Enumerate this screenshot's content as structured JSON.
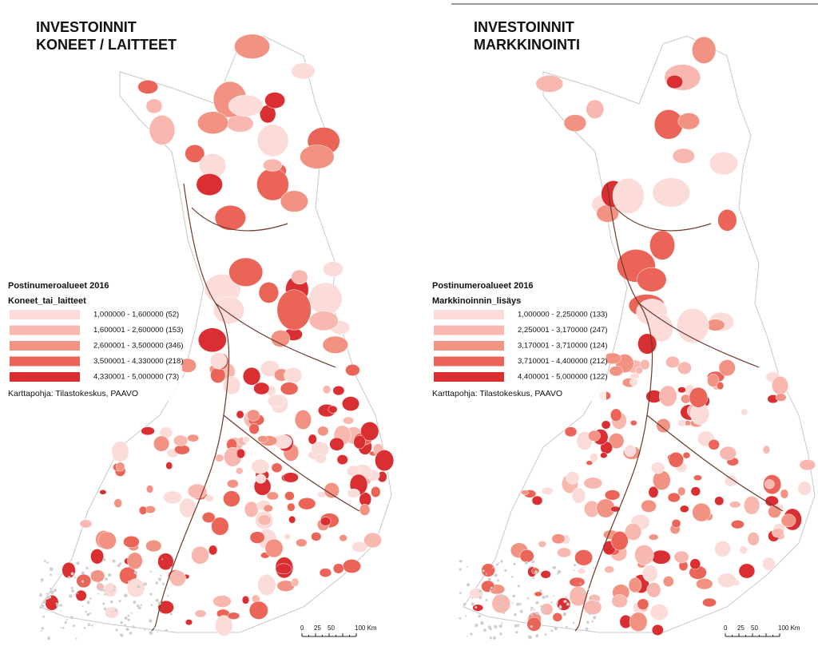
{
  "panels": [
    {
      "title_lines": [
        "INVESTOINNIT",
        "KONEET / LAITTEET"
      ],
      "legend": {
        "title": "Postinumeroalueet 2016",
        "field": "Koneet_tai_laitteet",
        "classes": [
          {
            "label": "1,000000 - 1,600000 (52)",
            "color": "#fbdcd9"
          },
          {
            "label": "1,600001 - 2,600000 (153)",
            "color": "#f8b8b0"
          },
          {
            "label": "2,600001 - 3,500000 (346)",
            "color": "#f29283"
          },
          {
            "label": "3,500001 - 4,330000 (218)",
            "color": "#ea6557"
          },
          {
            "label": "4,330001 - 5,000000 (73)",
            "color": "#d92f32"
          }
        ]
      },
      "source": "Karttapohja: Tilastokeskus, PAAVO",
      "scale_labels": [
        "0",
        "25",
        "50",
        "100 Km"
      ]
    },
    {
      "title_lines": [
        "INVESTOINNIT",
        "MARKKINOINTI"
      ],
      "legend": {
        "title": "Postinumeroalueet 2016",
        "field": "Markkinoinnin_lisäys",
        "classes": [
          {
            "label": "1,000000 - 2,250000 (133)",
            "color": "#fbdcd9"
          },
          {
            "label": "2,250001 - 3,170000 (247)",
            "color": "#f8b8b0"
          },
          {
            "label": "3,170001 - 3,710000 (124)",
            "color": "#f29283"
          },
          {
            "label": "3,710001 - 4,400000 (212)",
            "color": "#ea6557"
          },
          {
            "label": "4,400001 - 5,000000 (122)",
            "color": "#d92f32"
          }
        ]
      },
      "source": "Karttapohja: Tilastokeskus, PAAVO",
      "scale_labels": [
        "0",
        "25",
        "50",
        "100 Km"
      ]
    }
  ]
}
